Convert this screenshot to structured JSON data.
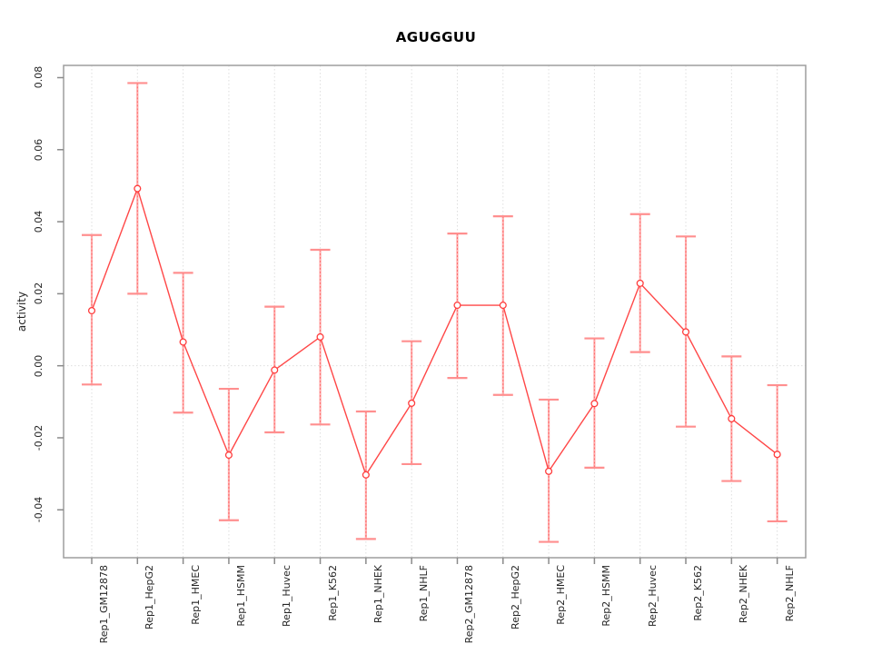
{
  "page": {
    "background": "#ffffff"
  },
  "chart_data": {
    "type": "line",
    "title": "AGUGGUU",
    "xlabel": "",
    "ylabel": "activity",
    "categories": [
      "Rep1_GM12878",
      "Rep1_HepG2",
      "Rep1_HMEC",
      "Rep1_HSMM",
      "Rep1_Huvec",
      "Rep1_K562",
      "Rep1_NHEK",
      "Rep1_NHLF",
      "Rep2_GM12878",
      "Rep2_HepG2",
      "Rep2_HMEC",
      "Rep2_HSMM",
      "Rep2_Huvec",
      "Rep2_K562",
      "Rep2_NHEK",
      "Rep2_NHLF"
    ],
    "series": [
      {
        "name": "activity",
        "values": [
          0.0153,
          0.0492,
          0.0066,
          -0.0248,
          -0.0012,
          0.008,
          -0.0303,
          -0.0104,
          0.0168,
          0.0168,
          -0.0293,
          -0.0105,
          0.0229,
          0.0094,
          -0.0147,
          -0.0246
        ],
        "error_low": [
          -0.0052,
          0.02,
          -0.013,
          -0.0429,
          -0.0185,
          -0.0163,
          -0.0481,
          -0.0273,
          -0.0034,
          -0.0081,
          -0.0489,
          -0.0283,
          0.0038,
          -0.0169,
          -0.032,
          -0.0432
        ],
        "error_high": [
          0.0363,
          0.0785,
          0.0258,
          -0.0064,
          0.0164,
          0.0322,
          -0.0127,
          0.0068,
          0.0367,
          0.0415,
          -0.0094,
          0.0076,
          0.0421,
          0.0359,
          0.0026,
          -0.0054
        ]
      }
    ],
    "ylim": [
      -0.0533,
      0.0834
    ],
    "yticks": [
      0.08,
      0.06,
      0.04,
      0.02,
      0.0,
      -0.02,
      -0.04
    ],
    "ytick_labels": [
      "0.08",
      "0.06",
      "0.04",
      "0.02",
      "0.00",
      "-0.02",
      "-0.04"
    ],
    "grid": {
      "vertical": "dotted line at each category",
      "horizontal": "dotted line at y=0 only"
    },
    "legend": "none",
    "point_style": "open-circle",
    "error_bars": true
  },
  "colors": {
    "line": "#ff4747",
    "point": "#ff3d3d",
    "error_stem": "#ffadad",
    "error_stem_dash": "#ff6666",
    "error_cap": "#ff8f8f",
    "grid": "#dedede",
    "axis": "#9e9e9e",
    "tick": "#8a8a8a",
    "text": "#262626",
    "title_text": "#000000",
    "background": "#ffffff"
  }
}
